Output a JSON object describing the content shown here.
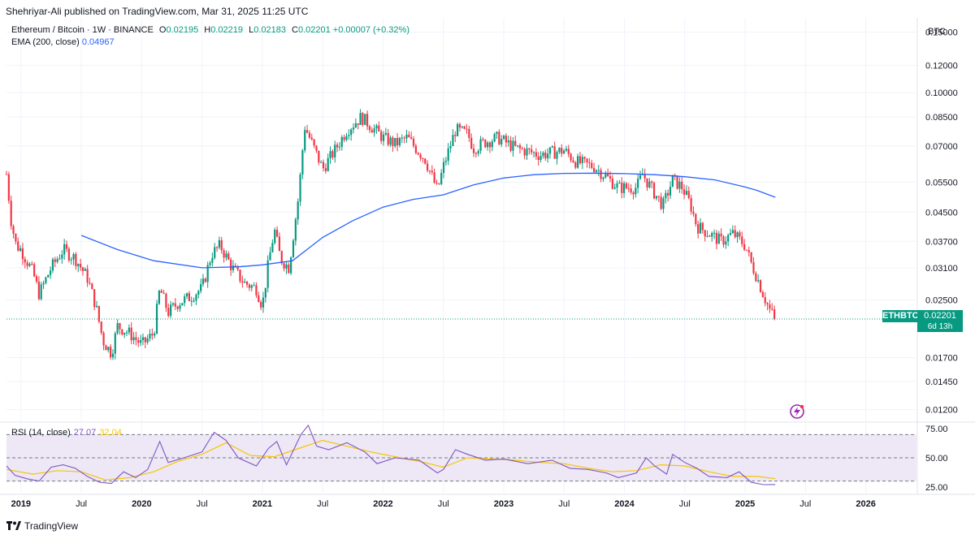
{
  "header": {
    "published": "Shehriyar-Ali published on TradingView.com, Mar 31, 2025 11:25 UTC",
    "symbol": "Ethereum / Bitcoin · 1W · BINANCE",
    "open_label": "O",
    "open": "0.02195",
    "high_label": "H",
    "high": "0.02219",
    "low_label": "L",
    "low": "0.02183",
    "close_label": "C",
    "close": "0.02201",
    "change": "+0.00007 (+0.32%)",
    "ema_label": "EMA (200, close)",
    "ema_value": "0.04967",
    "currency": "BTC"
  },
  "price_tag": {
    "symbol": "ETHBTC",
    "price": "0.02201",
    "countdown": "6d 13h"
  },
  "rsi": {
    "label": "RSI (14, close)",
    "value": "27.07",
    "ma_value": "32.04"
  },
  "footer": {
    "brand": "TradingView"
  },
  "colors": {
    "up": "#089981",
    "down": "#f23645",
    "ema": "#2962ff",
    "rsi": "#7e57c2",
    "rsi_ma": "#f7c600",
    "band": "#ede7f6"
  },
  "chart_data": [
    {
      "type": "candlestick",
      "title": "Ethereum / Bitcoin · 1W · BINANCE",
      "y_scale": "log",
      "ylim": [
        0.0111,
        0.165
      ],
      "y_ticks": [
        0.15,
        0.12,
        0.1,
        0.085,
        0.07,
        0.055,
        0.045,
        0.037,
        0.031,
        0.025,
        0.017,
        0.0145,
        0.012
      ],
      "y_tick_labels": [
        "0.15000",
        "0.12000",
        "0.10000",
        "0.08500",
        "0.07000",
        "0.05500",
        "0.04500",
        "0.03700",
        "0.03100",
        "0.02500",
        "0.01700",
        "0.01450",
        "0.01200"
      ],
      "x_range": [
        2018.88,
        2026.42
      ],
      "x_ticks": [
        2019.0,
        2019.5,
        2020.0,
        2020.5,
        2021.0,
        2021.5,
        2022.0,
        2022.5,
        2023.0,
        2023.5,
        2024.0,
        2024.5,
        2025.0,
        2025.5,
        2026.0
      ],
      "x_tick_labels": [
        "2019",
        "Jul",
        "2020",
        "Jul",
        "2021",
        "Jul",
        "2022",
        "Jul",
        "2023",
        "Jul",
        "2024",
        "Jul",
        "2025",
        "Jul",
        "2026"
      ],
      "close_path": [
        [
          2018.88,
          0.058
        ],
        [
          2018.92,
          0.042
        ],
        [
          2018.96,
          0.036
        ],
        [
          2019.0,
          0.035
        ],
        [
          2019.1,
          0.03
        ],
        [
          2019.15,
          0.026
        ],
        [
          2019.25,
          0.031
        ],
        [
          2019.35,
          0.035
        ],
        [
          2019.45,
          0.033
        ],
        [
          2019.55,
          0.029
        ],
        [
          2019.62,
          0.024
        ],
        [
          2019.68,
          0.019
        ],
        [
          2019.75,
          0.0175
        ],
        [
          2019.8,
          0.021
        ],
        [
          2019.9,
          0.02
        ],
        [
          2020.0,
          0.0185
        ],
        [
          2020.1,
          0.02
        ],
        [
          2020.15,
          0.027
        ],
        [
          2020.22,
          0.023
        ],
        [
          2020.3,
          0.0245
        ],
        [
          2020.4,
          0.0255
        ],
        [
          2020.5,
          0.027
        ],
        [
          2020.58,
          0.034
        ],
        [
          2020.65,
          0.036
        ],
        [
          2020.75,
          0.031
        ],
        [
          2020.85,
          0.028
        ],
        [
          2020.95,
          0.027
        ],
        [
          2021.0,
          0.024
        ],
        [
          2021.05,
          0.032
        ],
        [
          2021.1,
          0.04
        ],
        [
          2021.15,
          0.033
        ],
        [
          2021.22,
          0.031
        ],
        [
          2021.3,
          0.05
        ],
        [
          2021.35,
          0.08
        ],
        [
          2021.42,
          0.07
        ],
        [
          2021.5,
          0.06
        ],
        [
          2021.6,
          0.068
        ],
        [
          2021.7,
          0.078
        ],
        [
          2021.82,
          0.085
        ],
        [
          2021.9,
          0.08
        ],
        [
          2022.0,
          0.074
        ],
        [
          2022.1,
          0.071
        ],
        [
          2022.2,
          0.074
        ],
        [
          2022.35,
          0.064
        ],
        [
          2022.45,
          0.052
        ],
        [
          2022.5,
          0.061
        ],
        [
          2022.6,
          0.078
        ],
        [
          2022.7,
          0.076
        ],
        [
          2022.75,
          0.069
        ],
        [
          2022.85,
          0.072
        ],
        [
          2022.95,
          0.074
        ],
        [
          2023.1,
          0.069
        ],
        [
          2023.3,
          0.066
        ],
        [
          2023.5,
          0.068
        ],
        [
          2023.6,
          0.063
        ],
        [
          2023.75,
          0.061
        ],
        [
          2023.85,
          0.057
        ],
        [
          2023.95,
          0.053
        ],
        [
          2024.1,
          0.053
        ],
        [
          2024.15,
          0.058
        ],
        [
          2024.25,
          0.051
        ],
        [
          2024.32,
          0.047
        ],
        [
          2024.4,
          0.056
        ],
        [
          2024.48,
          0.053
        ],
        [
          2024.55,
          0.047
        ],
        [
          2024.6,
          0.041
        ],
        [
          2024.7,
          0.039
        ],
        [
          2024.8,
          0.037
        ],
        [
          2024.9,
          0.039
        ],
        [
          2025.0,
          0.036
        ],
        [
          2025.05,
          0.032
        ],
        [
          2025.1,
          0.029
        ],
        [
          2025.15,
          0.026
        ],
        [
          2025.2,
          0.0235
        ],
        [
          2025.25,
          0.02201
        ]
      ],
      "series": [
        {
          "name": "EMA (200, close)",
          "type": "line",
          "points": [
            [
              2019.5,
              0.0385
            ],
            [
              2019.8,
              0.035
            ],
            [
              2020.1,
              0.0325
            ],
            [
              2020.5,
              0.031
            ],
            [
              2020.8,
              0.0312
            ],
            [
              2021.0,
              0.0316
            ],
            [
              2021.25,
              0.0325
            ],
            [
              2021.5,
              0.038
            ],
            [
              2021.75,
              0.0425
            ],
            [
              2022.0,
              0.0465
            ],
            [
              2022.25,
              0.049
            ],
            [
              2022.5,
              0.0505
            ],
            [
              2022.75,
              0.054
            ],
            [
              2023.0,
              0.0565
            ],
            [
              2023.25,
              0.0578
            ],
            [
              2023.5,
              0.0583
            ],
            [
              2023.75,
              0.0584
            ],
            [
              2024.0,
              0.0582
            ],
            [
              2024.25,
              0.0578
            ],
            [
              2024.5,
              0.057
            ],
            [
              2024.75,
              0.0558
            ],
            [
              2025.0,
              0.0532
            ],
            [
              2025.1,
              0.052
            ],
            [
              2025.25,
              0.0497
            ]
          ]
        }
      ],
      "last_price": 0.02201
    },
    {
      "type": "line",
      "title": "RSI (14, close)",
      "ylim": [
        20,
        80
      ],
      "y_ticks": [
        75,
        50,
        25
      ],
      "y_tick_labels": [
        "75.00",
        "50.00",
        "25.00"
      ],
      "band": [
        30,
        70
      ],
      "x_range": [
        2018.88,
        2026.42
      ],
      "series": [
        {
          "name": "RSI",
          "points": [
            [
              2018.88,
              43
            ],
            [
              2018.95,
              35
            ],
            [
              2019.05,
              32
            ],
            [
              2019.15,
              30
            ],
            [
              2019.25,
              42
            ],
            [
              2019.35,
              44
            ],
            [
              2019.45,
              41
            ],
            [
              2019.55,
              34
            ],
            [
              2019.65,
              29
            ],
            [
              2019.75,
              28
            ],
            [
              2019.85,
              38
            ],
            [
              2019.95,
              33
            ],
            [
              2020.05,
              40
            ],
            [
              2020.15,
              64
            ],
            [
              2020.22,
              46
            ],
            [
              2020.35,
              50
            ],
            [
              2020.5,
              55
            ],
            [
              2020.6,
              72
            ],
            [
              2020.7,
              65
            ],
            [
              2020.8,
              50
            ],
            [
              2020.95,
              43
            ],
            [
              2021.05,
              58
            ],
            [
              2021.12,
              64
            ],
            [
              2021.2,
              44
            ],
            [
              2021.32,
              70
            ],
            [
              2021.38,
              78
            ],
            [
              2021.45,
              60
            ],
            [
              2021.55,
              57
            ],
            [
              2021.7,
              63
            ],
            [
              2021.85,
              55
            ],
            [
              2021.95,
              45
            ],
            [
              2022.1,
              50
            ],
            [
              2022.3,
              48
            ],
            [
              2022.45,
              37
            ],
            [
              2022.5,
              40
            ],
            [
              2022.6,
              57
            ],
            [
              2022.7,
              53
            ],
            [
              2022.85,
              48
            ],
            [
              2023.0,
              49
            ],
            [
              2023.2,
              45
            ],
            [
              2023.4,
              48
            ],
            [
              2023.55,
              41
            ],
            [
              2023.7,
              40
            ],
            [
              2023.85,
              37
            ],
            [
              2023.95,
              33
            ],
            [
              2024.1,
              37
            ],
            [
              2024.18,
              50
            ],
            [
              2024.25,
              43
            ],
            [
              2024.35,
              36
            ],
            [
              2024.4,
              53
            ],
            [
              2024.5,
              46
            ],
            [
              2024.6,
              41
            ],
            [
              2024.7,
              34
            ],
            [
              2024.85,
              33
            ],
            [
              2024.95,
              38
            ],
            [
              2025.05,
              29
            ],
            [
              2025.15,
              27
            ],
            [
              2025.25,
              27.07
            ]
          ]
        },
        {
          "name": "RSI MA",
          "points": [
            [
              2018.88,
              40
            ],
            [
              2019.1,
              36
            ],
            [
              2019.3,
              39
            ],
            [
              2019.5,
              38
            ],
            [
              2019.7,
              31
            ],
            [
              2019.9,
              33
            ],
            [
              2020.1,
              38
            ],
            [
              2020.3,
              47
            ],
            [
              2020.5,
              53
            ],
            [
              2020.7,
              63
            ],
            [
              2020.9,
              52
            ],
            [
              2021.1,
              51
            ],
            [
              2021.3,
              58
            ],
            [
              2021.5,
              65
            ],
            [
              2021.7,
              60
            ],
            [
              2021.9,
              55
            ],
            [
              2022.1,
              51
            ],
            [
              2022.3,
              47
            ],
            [
              2022.5,
              42
            ],
            [
              2022.7,
              50
            ],
            [
              2022.9,
              49
            ],
            [
              2023.1,
              48
            ],
            [
              2023.3,
              46
            ],
            [
              2023.5,
              45
            ],
            [
              2023.7,
              41
            ],
            [
              2023.9,
              38
            ],
            [
              2024.1,
              39
            ],
            [
              2024.3,
              44
            ],
            [
              2024.5,
              43
            ],
            [
              2024.7,
              38
            ],
            [
              2024.9,
              34
            ],
            [
              2025.1,
              34
            ],
            [
              2025.25,
              32.04
            ]
          ]
        }
      ]
    }
  ]
}
